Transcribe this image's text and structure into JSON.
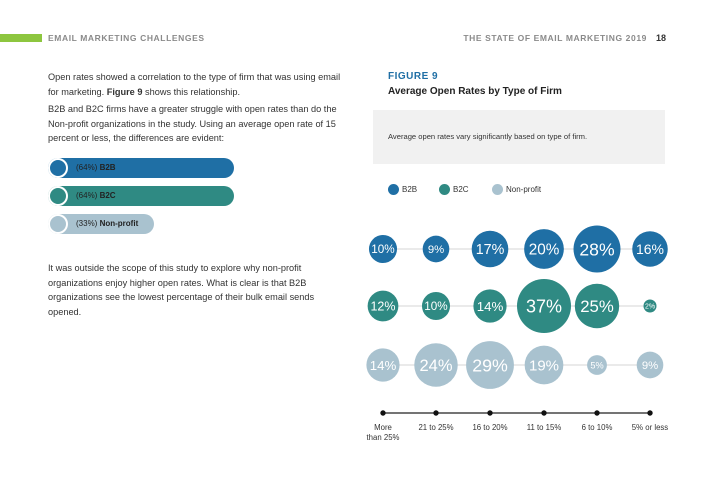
{
  "header": {
    "section": "EMAIL MARKETING CHALLENGES",
    "report": "THE STATE OF EMAIL MARKETING 2019",
    "page": "18"
  },
  "text": {
    "p1_a": "Open rates showed a correlation to the type of firm that was using email for marketing. ",
    "p1_b": "Figure 9",
    "p1_c": " shows this relationship.",
    "p2": "B2B and B2C firms have a greater struggle with open rates than do the Non-profit organizations in the study. Using an average open rate of 15 percent or less, the differences are evident:",
    "p3": "It was outside the scope of this study to explore why non-profit organizations enjoy higher open rates. What is clear is that B2B organizations see the lowest percentage of their bulk email sends opened."
  },
  "bars": [
    {
      "pct": "(64%)",
      "name": "B2B",
      "value": 64,
      "color": "#1f6fa5"
    },
    {
      "pct": "(64%)",
      "name": "B2C",
      "value": 64,
      "color": "#2f8a83"
    },
    {
      "pct": "(33%)",
      "name": "Non-profit",
      "value": 33,
      "color": "#a9c2cf"
    }
  ],
  "figure": {
    "number": "FIGURE 9",
    "title": "Average Open Rates by Type of Firm",
    "note": "Average open rates vary significantly based on type of firm."
  },
  "colors": {
    "b2b": "#1f6fa5",
    "b2c": "#2f8a83",
    "nonprofit": "#a9c2cf"
  },
  "chart_data": {
    "type": "bubble",
    "title": "Average Open Rates by Type of Firm",
    "categories": [
      "More than 25%",
      "21 to 25%",
      "16 to 20%",
      "11 to 15%",
      "6 to 10%",
      "5% or less"
    ],
    "category_labels": [
      [
        "More",
        "than 25%"
      ],
      [
        "21 to 25%"
      ],
      [
        "16 to 20%"
      ],
      [
        "11 to 15%"
      ],
      [
        "6 to 10%"
      ],
      [
        "5% or less"
      ]
    ],
    "series": [
      {
        "name": "B2B",
        "color": "#1f6fa5",
        "values": [
          10,
          9,
          17,
          20,
          28,
          16
        ]
      },
      {
        "name": "B2C",
        "color": "#2f8a83",
        "values": [
          12,
          10,
          14,
          37,
          25,
          2
        ]
      },
      {
        "name": "Non-profit",
        "color": "#a9c2cf",
        "values": [
          14,
          24,
          29,
          19,
          5,
          9
        ]
      }
    ],
    "legend": "top"
  }
}
